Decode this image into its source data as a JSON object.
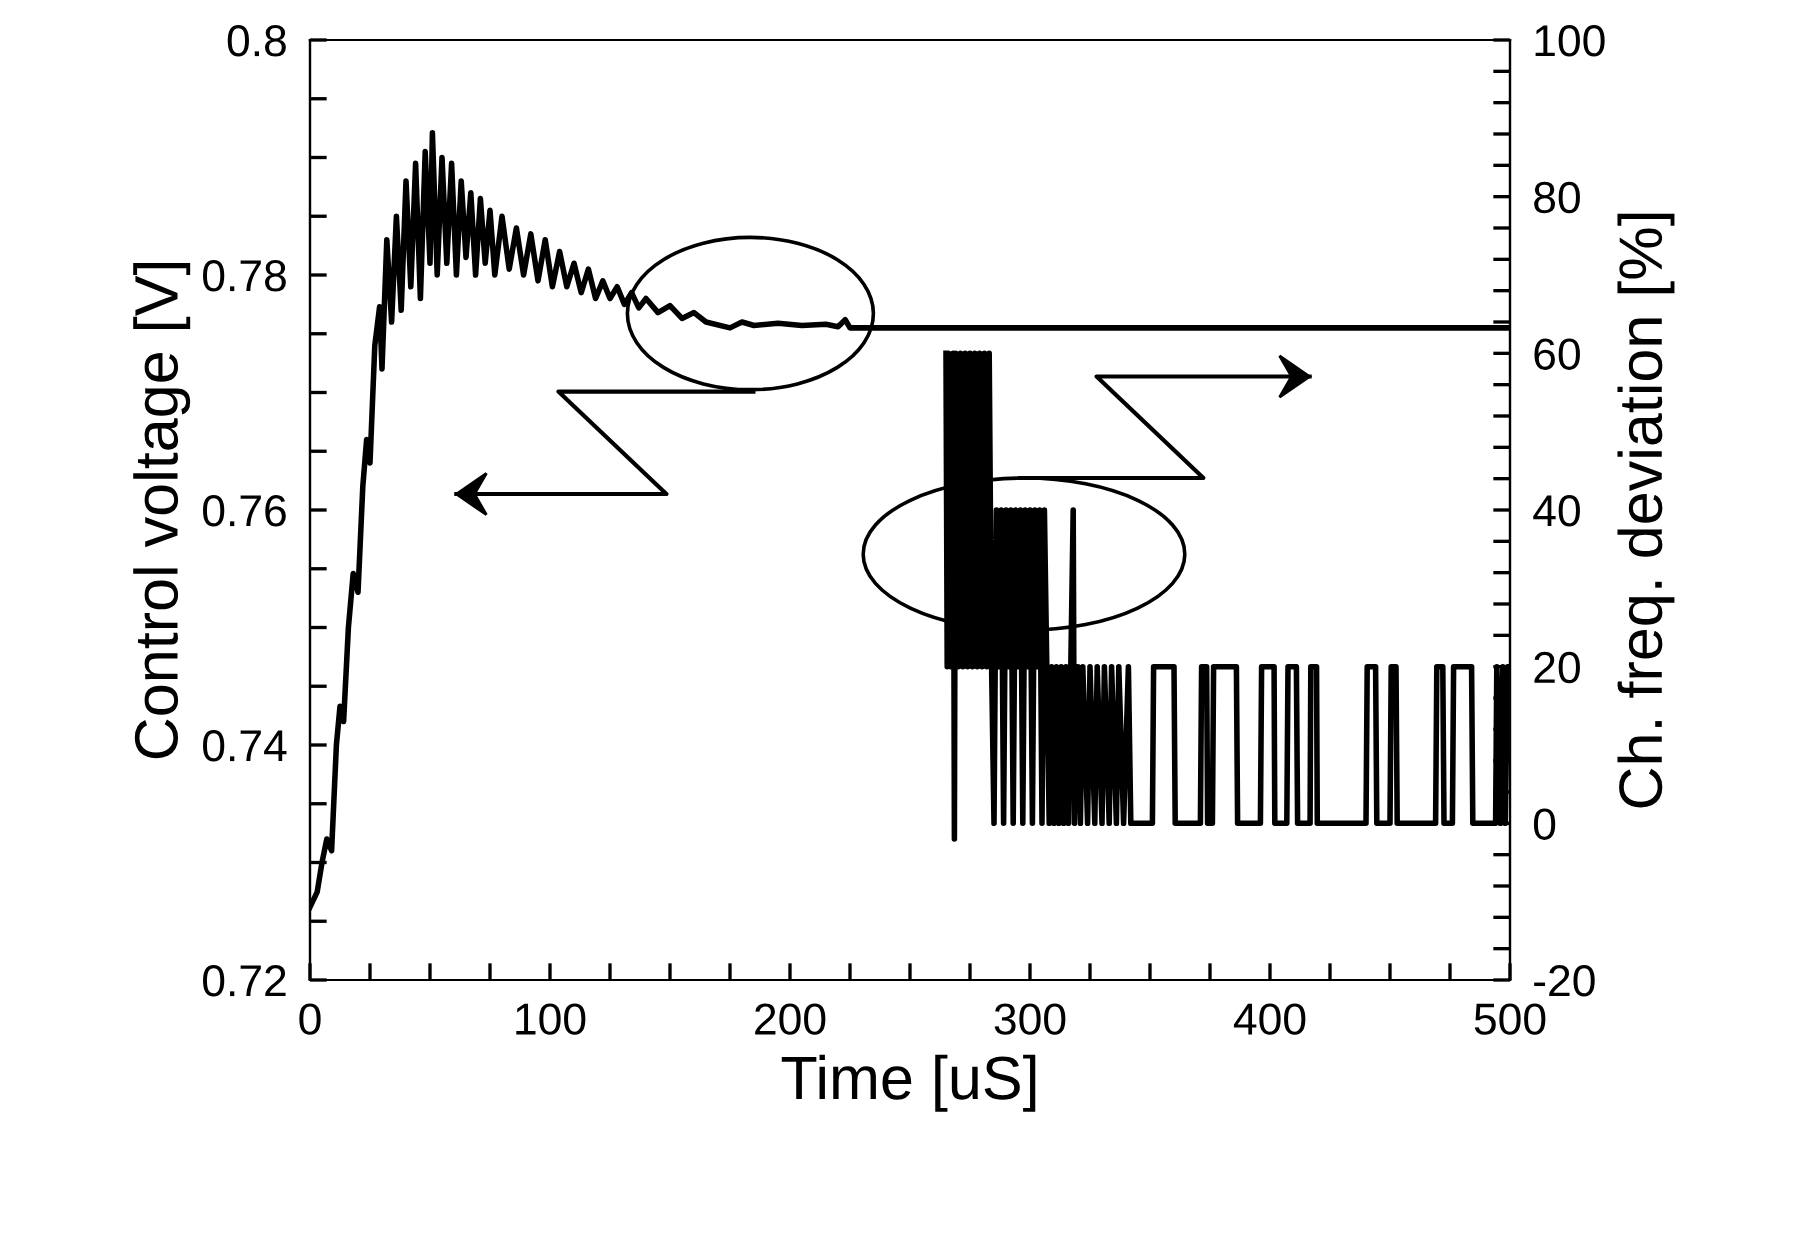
{
  "chart_data": {
    "type": "line",
    "xlabel": "Time [uS]",
    "ylabel": "Control voltage [V]",
    "y2label": "Ch. freq. deviation [%]",
    "xlim": [
      0,
      500
    ],
    "xticks": [
      0,
      {
        "value": 25,
        "label": null
      },
      100,
      {
        "value": 50,
        "label": null
      },
      {
        "value": 75,
        "label": null
      },
      {
        "value": 125,
        "label": null
      },
      {
        "value": 150,
        "label": null
      },
      {
        "value": 175,
        "label": null
      },
      200,
      {
        "value": 225,
        "label": null
      },
      {
        "value": 250,
        "label": null
      },
      {
        "value": 275,
        "label": null
      },
      300,
      {
        "value": 325,
        "label": null
      },
      {
        "value": 350,
        "label": null
      },
      {
        "value": 375,
        "label": null
      },
      400,
      {
        "value": 425,
        "label": null
      },
      {
        "value": 450,
        "label": null
      },
      {
        "value": 475,
        "label": null
      },
      500
    ],
    "ylim": [
      0.72,
      0.8
    ],
    "yticks": [
      0.72,
      {
        "value": 0.725,
        "label": null
      },
      {
        "value": 0.73,
        "label": null
      },
      {
        "value": 0.735,
        "label": null
      },
      0.74,
      {
        "value": 0.745,
        "label": null
      },
      {
        "value": 0.75,
        "label": null
      },
      {
        "value": 0.755,
        "label": null
      },
      0.76,
      {
        "value": 0.765,
        "label": null
      },
      {
        "value": 0.77,
        "label": null
      },
      {
        "value": 0.775,
        "label": null
      },
      0.78,
      {
        "value": 0.785,
        "label": null
      },
      {
        "value": 0.79,
        "label": null
      },
      {
        "value": 0.795,
        "label": null
      },
      0.8
    ],
    "y2lim": [
      -20,
      100
    ],
    "y2ticks": [
      -20,
      {
        "value": -16,
        "label": null
      },
      {
        "value": -12,
        "label": null
      },
      {
        "value": -8,
        "label": null
      },
      {
        "value": -4,
        "label": null
      },
      0,
      {
        "value": 4,
        "label": null
      },
      {
        "value": 8,
        "label": null
      },
      {
        "value": 12,
        "label": null
      },
      {
        "value": 16,
        "label": null
      },
      20,
      {
        "value": 24,
        "label": null
      },
      {
        "value": 28,
        "label": null
      },
      {
        "value": 32,
        "label": null
      },
      {
        "value": 36,
        "label": null
      },
      40,
      {
        "value": 44,
        "label": null
      },
      {
        "value": 48,
        "label": null
      },
      {
        "value": 52,
        "label": null
      },
      {
        "value": 56,
        "label": null
      },
      60,
      {
        "value": 64,
        "label": null
      },
      {
        "value": 68,
        "label": null
      },
      {
        "value": 72,
        "label": null
      },
      {
        "value": 76,
        "label": null
      },
      80,
      {
        "value": 84,
        "label": null
      },
      {
        "value": 88,
        "label": null
      },
      {
        "value": 92,
        "label": null
      },
      {
        "value": 96,
        "label": null
      },
      100
    ],
    "grid": false,
    "legend": false,
    "series": [
      {
        "color": "#000000",
        "x": [
          0,
          3,
          5,
          7,
          9,
          11,
          12.5,
          14,
          16,
          18,
          20,
          22,
          23.6,
          25,
          27,
          29,
          30,
          32,
          34,
          36,
          38,
          40,
          42,
          44,
          46,
          48,
          50,
          51,
          53,
          55,
          57,
          59,
          61,
          63,
          65,
          67,
          69,
          71,
          73,
          75,
          77,
          80,
          83,
          86,
          89,
          92,
          95,
          98,
          101,
          104,
          107,
          110,
          113,
          116,
          119,
          122,
          125,
          128,
          131,
          134,
          137,
          140,
          145,
          150,
          155,
          160,
          165,
          175,
          180,
          185,
          195,
          205,
          215,
          220,
          223,
          225,
          500
        ],
        "values": [
          0.7262,
          0.7275,
          0.73,
          0.732,
          0.731,
          0.74,
          0.7433,
          0.742,
          0.75,
          0.7546,
          0.753,
          0.762,
          0.766,
          0.764,
          0.774,
          0.7773,
          0.772,
          0.783,
          0.776,
          0.785,
          0.777,
          0.788,
          0.779,
          0.7895,
          0.778,
          0.7905,
          0.781,
          0.7921,
          0.78,
          0.79,
          0.781,
          0.7895,
          0.78,
          0.788,
          0.7815,
          0.787,
          0.78,
          0.7865,
          0.781,
          0.7855,
          0.78,
          0.785,
          0.7805,
          0.784,
          0.78,
          0.7835,
          0.7795,
          0.783,
          0.779,
          0.782,
          0.779,
          0.781,
          0.7785,
          0.7805,
          0.778,
          0.7795,
          0.778,
          0.779,
          0.7775,
          0.7785,
          0.7772,
          0.778,
          0.7768,
          0.7774,
          0.7763,
          0.7768,
          0.776,
          0.7755,
          0.776,
          0.7757,
          0.7759,
          0.7757,
          0.7758,
          0.7756,
          0.7762,
          0.7755,
          0.7755
        ]
      },
      {
        "color": "#000000",
        "axis": "y2",
        "x": [
          265,
          265.5,
          266,
          267,
          268,
          268.5,
          269,
          270,
          271,
          272,
          273,
          274,
          275,
          276,
          277,
          278,
          279,
          280,
          281,
          282,
          283,
          283.5,
          284,
          285,
          286,
          287,
          288,
          289,
          290,
          291,
          292,
          293,
          294,
          295,
          296,
          297,
          298,
          299,
          300,
          301,
          302,
          303,
          304,
          305,
          306,
          307,
          308,
          309,
          310,
          311,
          312,
          313,
          314,
          315,
          316,
          317,
          318,
          318.5,
          320,
          321,
          322,
          324,
          325,
          327,
          328,
          330,
          331,
          333,
          334,
          336,
          337,
          339,
          341,
          342,
          351,
          351.5,
          360,
          360.5,
          371,
          371.5,
          373.6,
          374,
          376,
          376.5,
          386,
          386.5,
          396,
          396.5,
          401.7,
          402,
          407,
          407.5,
          411,
          411.5,
          416.7,
          417,
          419.4,
          419.7,
          440,
          440.5,
          444,
          444.5,
          450,
          450.5,
          452.5,
          453,
          469,
          469.5,
          472,
          472.5,
          476,
          476.5,
          484,
          484.5,
          494,
          494.5,
          496,
          497,
          498,
          499,
          500
        ],
        "values": [
          60,
          20,
          60,
          20,
          60,
          -2,
          60,
          20,
          60,
          20,
          60,
          20,
          60,
          20,
          60,
          20,
          60,
          20,
          60,
          20,
          60,
          40,
          20,
          0,
          40,
          20,
          40,
          0,
          40,
          20,
          40,
          0,
          40,
          20,
          40,
          0,
          40,
          20,
          40,
          0,
          40,
          20,
          40,
          0,
          40,
          20,
          0,
          20,
          0,
          20,
          0,
          20,
          0,
          20,
          0,
          20,
          40,
          0,
          20,
          0,
          20,
          0,
          20,
          0,
          20,
          0,
          20,
          0,
          20,
          0,
          20,
          0,
          20,
          0,
          0,
          20,
          20,
          0,
          0,
          20,
          20,
          0,
          0,
          20,
          20,
          0,
          0,
          20,
          20,
          0,
          0,
          20,
          20,
          0,
          0,
          20,
          20,
          0,
          0,
          20,
          20,
          0,
          0,
          20,
          20,
          0,
          0,
          20,
          20,
          0,
          0,
          20,
          20,
          0,
          0,
          20,
          0,
          20,
          0,
          20,
          20
        ]
      }
    ]
  }
}
